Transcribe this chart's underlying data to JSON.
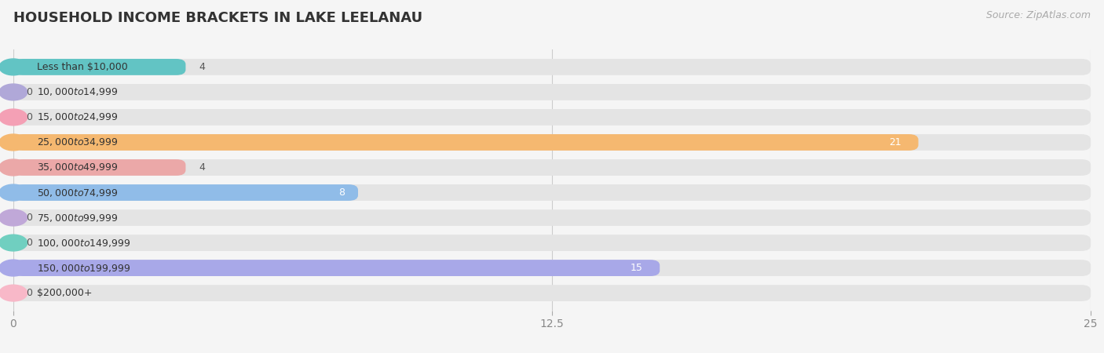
{
  "title": "HOUSEHOLD INCOME BRACKETS IN LAKE LEELANAU",
  "source": "Source: ZipAtlas.com",
  "categories": [
    "Less than $10,000",
    "$10,000 to $14,999",
    "$15,000 to $24,999",
    "$25,000 to $34,999",
    "$35,000 to $49,999",
    "$50,000 to $74,999",
    "$75,000 to $99,999",
    "$100,000 to $149,999",
    "$150,000 to $199,999",
    "$200,000+"
  ],
  "values": [
    4,
    0,
    0,
    21,
    4,
    8,
    0,
    0,
    15,
    0
  ],
  "bar_colors": [
    "#62c4c4",
    "#b0a8d8",
    "#f4a0b5",
    "#f5b870",
    "#eba8a8",
    "#90bce8",
    "#c0a8d8",
    "#70cfc0",
    "#a8a8e8",
    "#f8b8c8"
  ],
  "xlim": [
    0,
    25
  ],
  "xticks": [
    0,
    12.5,
    25
  ],
  "background_color": "#f5f5f5",
  "bar_bg_color": "#e4e4e4",
  "title_fontsize": 13,
  "label_fontsize": 9,
  "value_fontsize": 9,
  "source_fontsize": 9
}
